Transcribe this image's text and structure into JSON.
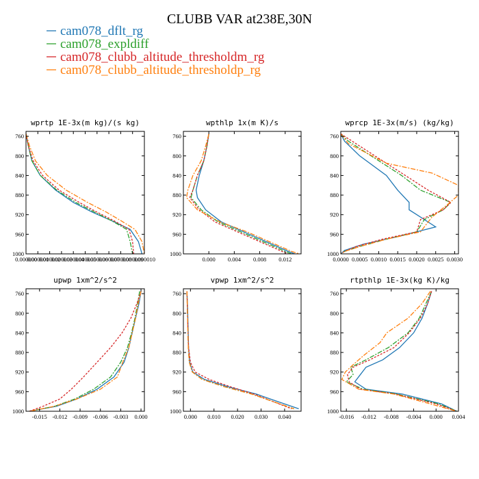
{
  "chart_data": {
    "title": "CLUBB VAR at238E,30N",
    "legend": [
      {
        "name": "cam078_dflt_rg",
        "color": "#1f77b4"
      },
      {
        "name": "cam078_expldiff",
        "color": "#2ca02c"
      },
      {
        "name": "cam078_clubb_altitude_thresholdm_rg",
        "color": "#d62728"
      },
      {
        "name": "cam078_clubb_altitude_thresholdp_rg",
        "color": "#ff7f0e"
      }
    ],
    "colors": [
      "#1f77b4",
      "#2ca02c",
      "#d62728",
      "#ff7f0e"
    ],
    "dashes": [
      "",
      "7,2,2,2",
      "3,2",
      "7,2,2,2"
    ],
    "panels": [
      {
        "type": "line",
        "title": "wprtp  1E-3x(m kg)/(s kg)",
        "xlim": [
          0,
          1e-05
        ],
        "ylim": [
          750,
          1000
        ],
        "xticks": [
          {
            "v": 0.0,
            "label": "0.000000"
          },
          {
            "v": 1e-06,
            "label": "0.000001"
          },
          {
            "v": 2e-06,
            "label": "0.000002"
          },
          {
            "v": 3e-06,
            "label": "0.000003"
          },
          {
            "v": 4e-06,
            "label": "0.000004"
          },
          {
            "v": 5e-06,
            "label": "0.000005"
          },
          {
            "v": 6e-06,
            "label": "0.000006"
          },
          {
            "v": 7e-06,
            "label": "0.000007"
          },
          {
            "v": 8e-06,
            "label": "0.000008"
          },
          {
            "v": 9e-06,
            "label": "0.000009"
          },
          {
            "v": 1e-05,
            "label": "0.000010"
          }
        ],
        "yticks": [
          760,
          800,
          840,
          880,
          920,
          960,
          1000
        ],
        "series": [
          {
            "x": [
              0.0,
              2e-07,
              5e-07,
              1.2e-06,
              2.5e-06,
              4e-06,
              5.6e-06,
              7.2e-06,
              8.8e-06,
              9.5e-06,
              9.8e-06
            ],
            "y": [
              755,
              780,
              810,
              840,
              870,
              895,
              915,
              932,
              950,
              975,
              1000
            ]
          },
          {
            "x": [
              0.0,
              2e-07,
              5e-07,
              1.2e-06,
              2.6e-06,
              4.2e-06,
              5.8e-06,
              7.2e-06,
              8.5e-06,
              8.8e-06,
              9e-06
            ],
            "y": [
              755,
              780,
              810,
              840,
              870,
              895,
              915,
              932,
              950,
              975,
              1000
            ]
          },
          {
            "x": [
              0.0,
              2e-07,
              6e-07,
              1.4e-06,
              2.8e-06,
              4.5e-06,
              6e-06,
              7.4e-06,
              8.7e-06,
              9e-06,
              9.1e-06
            ],
            "y": [
              755,
              780,
              810,
              840,
              870,
              895,
              915,
              932,
              950,
              975,
              1000
            ]
          },
          {
            "x": [
              0.0,
              3e-07,
              8e-07,
              1.8e-06,
              3.4e-06,
              5.2e-06,
              6.8e-06,
              8e-06,
              9.2e-06,
              9.8e-06,
              1e-05
            ],
            "y": [
              755,
              780,
              810,
              840,
              870,
              895,
              915,
              932,
              950,
              975,
              1000
            ]
          }
        ]
      },
      {
        "type": "line",
        "title": "wpthlp  1x(m K)/s",
        "xlim": [
          -0.004,
          0.0145
        ],
        "ylim": [
          750,
          1000
        ],
        "xticks": [
          {
            "v": 0.0,
            "label": "0.000"
          },
          {
            "v": 0.004,
            "label": "0.004"
          },
          {
            "v": 0.008,
            "label": "0.008"
          },
          {
            "v": 0.012,
            "label": "0.012"
          }
        ],
        "yticks": [
          760,
          800,
          840,
          880,
          920,
          960,
          1000
        ],
        "series": [
          {
            "x": [
              0.0,
              -0.0003,
              -0.0008,
              -0.0015,
              -0.002,
              -0.0018,
              -0.0005,
              0.002,
              0.0055,
              0.009,
              0.0125,
              0.0135
            ],
            "y": [
              755,
              780,
              810,
              840,
              870,
              885,
              910,
              935,
              955,
              975,
              995,
              1000
            ]
          },
          {
            "x": [
              0.0,
              -0.0003,
              -0.0008,
              -0.0018,
              -0.0025,
              -0.0028,
              -0.0012,
              0.0015,
              0.005,
              0.0085,
              0.012,
              0.013
            ],
            "y": [
              755,
              780,
              810,
              840,
              870,
              885,
              910,
              935,
              955,
              975,
              995,
              1000
            ]
          },
          {
            "x": [
              0.0,
              -0.0003,
              -0.0008,
              -0.0018,
              -0.0025,
              -0.003,
              -0.0015,
              0.001,
              0.0045,
              0.008,
              0.0115,
              0.0125
            ],
            "y": [
              755,
              780,
              810,
              840,
              870,
              885,
              910,
              935,
              955,
              975,
              995,
              1000
            ]
          },
          {
            "x": [
              0.0,
              -0.0005,
              -0.0012,
              -0.0025,
              -0.0033,
              -0.0035,
              -0.0018,
              0.0018,
              0.006,
              0.0095,
              0.013,
              0.0142
            ],
            "y": [
              755,
              780,
              810,
              840,
              870,
              885,
              910,
              935,
              955,
              975,
              995,
              1000
            ]
          }
        ]
      },
      {
        "type": "line",
        "title": "wprcp  1E-3x(m/s) (kg/kg)",
        "xlim": [
          0,
          0.0031
        ],
        "ylim": [
          750,
          1000
        ],
        "xticks": [
          {
            "v": 0.0,
            "label": "0.0000"
          },
          {
            "v": 0.0005,
            "label": "0.0005"
          },
          {
            "v": 0.001,
            "label": "0.0010"
          },
          {
            "v": 0.0015,
            "label": "0.0015"
          },
          {
            "v": 0.002,
            "label": "0.0020"
          },
          {
            "v": 0.0025,
            "label": "0.0025"
          },
          {
            "v": 0.003,
            "label": "0.0030"
          }
        ],
        "yticks": [
          760,
          800,
          840,
          880,
          920,
          960,
          1000
        ],
        "series": [
          {
            "x": [
              0.0,
              0.0001,
              0.0005,
              0.0012,
              0.0015,
              0.0018,
              0.0018,
              0.002,
              0.0025,
              0.0015,
              0.0006,
              0.0001,
              0.0
            ],
            "y": [
              755,
              770,
              800,
              840,
              870,
              895,
              910,
              920,
              945,
              965,
              980,
              993,
              1000
            ]
          },
          {
            "x": [
              0.0,
              0.0002,
              0.0008,
              0.0016,
              0.0021,
              0.0029,
              0.0027,
              0.0022,
              0.002,
              0.0012,
              0.0005,
              0.0001,
              0.0
            ],
            "y": [
              755,
              770,
              800,
              840,
              870,
              895,
              910,
              930,
              955,
              970,
              985,
              995,
              1000
            ]
          },
          {
            "x": [
              0.0,
              0.0003,
              0.0009,
              0.0017,
              0.0023,
              0.0029,
              0.0027,
              0.0021,
              0.002,
              0.0011,
              0.0004,
              0.0001,
              0.0
            ],
            "y": [
              755,
              770,
              800,
              840,
              870,
              895,
              910,
              930,
              955,
              970,
              985,
              995,
              1000
            ]
          },
          {
            "x": [
              0.0,
              0.0002,
              0.0012,
              0.0024,
              0.0031,
              0.0031,
              0.0028,
              0.0024,
              0.0021,
              0.0012,
              0.0005,
              0.0001,
              0.0
            ],
            "y": [
              755,
              775,
              815,
              835,
              860,
              880,
              900,
              925,
              955,
              970,
              985,
              995,
              1000
            ]
          }
        ]
      },
      {
        "type": "line",
        "title": "upwp  1xm^2/s^2",
        "xlim": [
          -0.017,
          0.0005
        ],
        "ylim": [
          750,
          1000
        ],
        "xticks": [
          {
            "v": -0.015,
            "label": "-0.015"
          },
          {
            "v": -0.012,
            "label": "-0.012"
          },
          {
            "v": -0.009,
            "label": "-0.009"
          },
          {
            "v": -0.006,
            "label": "-0.006"
          },
          {
            "v": -0.003,
            "label": "-0.003"
          },
          {
            "v": 0.0,
            "label": "0.000"
          }
        ],
        "yticks": [
          760,
          800,
          840,
          880,
          920,
          960,
          1000
        ],
        "series": [
          {
            "x": [
              0.0,
              -0.0003,
              -0.0008,
              -0.0013,
              -0.0018,
              -0.0025,
              -0.004,
              -0.0065,
              -0.0095,
              -0.0125,
              -0.0165
            ],
            "y": [
              755,
              780,
              810,
              840,
              870,
              900,
              930,
              955,
              975,
              990,
              1000
            ]
          },
          {
            "x": [
              -0.0002,
              -0.0005,
              -0.0009,
              -0.0014,
              -0.002,
              -0.003,
              -0.0045,
              -0.007,
              -0.0098,
              -0.0128,
              -0.0165
            ],
            "y": [
              755,
              780,
              810,
              840,
              870,
              900,
              930,
              955,
              975,
              990,
              1000
            ]
          },
          {
            "x": [
              0.0,
              -0.0006,
              -0.0015,
              -0.0028,
              -0.0045,
              -0.0065,
              -0.0085,
              -0.0103,
              -0.012,
              -0.0145,
              -0.0165
            ],
            "y": [
              755,
              780,
              810,
              840,
              870,
              900,
              930,
              955,
              975,
              990,
              1000
            ]
          },
          {
            "x": [
              0.0,
              -0.0004,
              -0.0008,
              -0.0013,
              -0.0018,
              -0.0027,
              -0.0035,
              -0.006,
              -0.0095,
              -0.0128,
              -0.0165
            ],
            "y": [
              755,
              780,
              810,
              840,
              870,
              900,
              930,
              955,
              975,
              990,
              1000
            ]
          }
        ]
      },
      {
        "type": "line",
        "title": "vpwp  1xm^2/s^2",
        "xlim": [
          -0.003,
          0.047
        ],
        "ylim": [
          750,
          1000
        ],
        "xticks": [
          {
            "v": 0.0,
            "label": "0.000"
          },
          {
            "v": 0.01,
            "label": "0.010"
          },
          {
            "v": 0.02,
            "label": "0.020"
          },
          {
            "v": 0.03,
            "label": "0.030"
          },
          {
            "v": 0.04,
            "label": "0.040"
          }
        ],
        "yticks": [
          760,
          800,
          840,
          880,
          920,
          960,
          1000
        ],
        "series": [
          {
            "x": [
              -0.0015,
              -0.0012,
              -0.001,
              -0.0008,
              -0.0003,
              0.001,
              0.006,
              0.016,
              0.028,
              0.037,
              0.046
            ],
            "y": [
              755,
              790,
              830,
              870,
              900,
              920,
              935,
              950,
              965,
              980,
              995
            ]
          },
          {
            "x": [
              -0.0015,
              -0.0013,
              -0.0011,
              -0.0009,
              -0.0005,
              0.0008,
              0.005,
              0.0145,
              0.026,
              0.035,
              0.044
            ],
            "y": [
              755,
              790,
              830,
              870,
              900,
              920,
              935,
              950,
              965,
              980,
              995
            ]
          },
          {
            "x": [
              -0.0015,
              -0.0013,
              -0.0011,
              -0.0008,
              0.0,
              0.002,
              0.008,
              0.017,
              0.027,
              0.035,
              0.043
            ],
            "y": [
              755,
              790,
              830,
              870,
              900,
              920,
              935,
              950,
              965,
              980,
              995
            ]
          },
          {
            "x": [
              -0.0015,
              -0.0013,
              -0.0011,
              -0.0009,
              -0.0005,
              0.0008,
              0.005,
              0.0145,
              0.026,
              0.035,
              0.044
            ],
            "y": [
              755,
              790,
              830,
              870,
              900,
              920,
              935,
              950,
              965,
              980,
              995
            ]
          }
        ]
      },
      {
        "type": "line",
        "title": "rtpthlp  1E-3x(kg K)/kg",
        "xlim": [
          -0.017,
          0.004
        ],
        "ylim": [
          750,
          1000
        ],
        "xticks": [
          {
            "v": -0.016,
            "label": "-0.016"
          },
          {
            "v": -0.012,
            "label": "-0.012"
          },
          {
            "v": -0.008,
            "label": "-0.008"
          },
          {
            "v": -0.004,
            "label": "-0.004"
          },
          {
            "v": 0.0,
            "label": "0.000"
          },
          {
            "v": 0.004,
            "label": "0.004"
          }
        ],
        "yticks": [
          760,
          800,
          840,
          880,
          920,
          960,
          1000
        ],
        "series": [
          {
            "x": [
              -0.0008,
              -0.0015,
              -0.0025,
              -0.004,
              -0.0065,
              -0.0095,
              -0.0125,
              -0.0135,
              -0.0145,
              -0.0125,
              -0.006,
              0.001,
              0.0037
            ],
            "y": [
              755,
              780,
              810,
              840,
              870,
              895,
              910,
              925,
              940,
              955,
              965,
              985,
              1000
            ]
          },
          {
            "x": [
              -0.0008,
              -0.0018,
              -0.003,
              -0.005,
              -0.0085,
              -0.0125,
              -0.0152,
              -0.0148,
              -0.016,
              -0.013,
              -0.007,
              0.0005,
              0.0037
            ],
            "y": [
              755,
              780,
              810,
              840,
              870,
              895,
              910,
              925,
              940,
              955,
              965,
              985,
              1000
            ]
          },
          {
            "x": [
              -0.0008,
              -0.0015,
              -0.0028,
              -0.0048,
              -0.0075,
              -0.0118,
              -0.0148,
              -0.0158,
              -0.0155,
              -0.0135,
              -0.0072,
              0.0,
              0.0037
            ],
            "y": [
              755,
              780,
              810,
              840,
              870,
              895,
              910,
              925,
              940,
              955,
              965,
              985,
              1000
            ]
          },
          {
            "x": [
              -0.001,
              -0.0025,
              -0.005,
              -0.0088,
              -0.01,
              -0.0128,
              -0.0148,
              -0.0162,
              -0.0168,
              -0.0138,
              -0.0075,
              -0.001,
              0.0037
            ],
            "y": [
              755,
              780,
              810,
              840,
              860,
              885,
              905,
              920,
              935,
              955,
              965,
              985,
              1000
            ]
          }
        ]
      }
    ]
  }
}
